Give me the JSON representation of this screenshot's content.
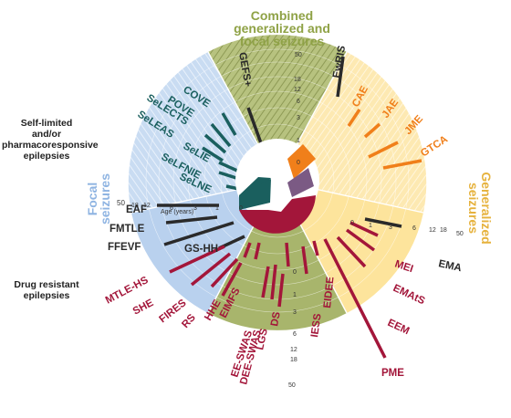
{
  "titles": {
    "combined": [
      "Combined",
      "generalized and",
      "focal seizures"
    ],
    "generalized": [
      "Generalized",
      "seizures"
    ],
    "focal": [
      "Focal",
      "seizures"
    ]
  },
  "side_labels": {
    "self_limited": [
      "Self-limited",
      "and/or",
      "pharmacoresponsive",
      "epilepsies"
    ],
    "drug_resistant": [
      "Drug resistant",
      "epilepsies"
    ]
  },
  "scale": {
    "axis_title": "Age (years)",
    "ticks": [
      "0",
      "1",
      "3",
      "6",
      "12",
      "18",
      "50"
    ]
  },
  "colors": {
    "focal_bg": "#b9d1ee",
    "generalized_bg": "#fde49c",
    "combined_bg": "#a8b56c",
    "focal_dark": "#1a5f5e",
    "generalized_orange": "#f07f1a",
    "drug_resistant_red": "#a3163a",
    "neutral_black": "#2a2a2a",
    "purple": "#7b5a84",
    "combined_title": "#8fa246",
    "generalized_title": "#e6b23d",
    "focal_title": "#8fb4e2"
  },
  "syndromes": [
    {
      "label": "COVE",
      "group": "focal_dark"
    },
    {
      "label": "POVE",
      "group": "focal_dark"
    },
    {
      "label": "SeLECTS",
      "group": "focal_dark"
    },
    {
      "label": "SeLEAS",
      "group": "focal_dark"
    },
    {
      "label": "SeLIE",
      "group": "focal_dark"
    },
    {
      "label": "SeLFNIE",
      "group": "focal_dark"
    },
    {
      "label": "SeLNE",
      "group": "focal_dark"
    },
    {
      "label": "EAF",
      "group": "neutral_black"
    },
    {
      "label": "FMTLE",
      "group": "neutral_black"
    },
    {
      "label": "FFEVF",
      "group": "neutral_black"
    },
    {
      "label": "GS-HH",
      "group": "neutral_black"
    },
    {
      "label": "MTLE-HS",
      "group": "drug_resistant_red"
    },
    {
      "label": "SHE",
      "group": "drug_resistant_red"
    },
    {
      "label": "FIRES",
      "group": "drug_resistant_red"
    },
    {
      "label": "RS",
      "group": "drug_resistant_red"
    },
    {
      "label": "HHE",
      "group": "drug_resistant_red"
    },
    {
      "label": "EIMFS",
      "group": "drug_resistant_red"
    },
    {
      "label": "EE-SWAS",
      "group": "drug_resistant_red"
    },
    {
      "label": "DEE-SWAS",
      "group": "drug_resistant_red"
    },
    {
      "label": "LGS",
      "group": "drug_resistant_red"
    },
    {
      "label": "DS",
      "group": "drug_resistant_red"
    },
    {
      "label": "IESS",
      "group": "drug_resistant_red"
    },
    {
      "label": "EIDEE",
      "group": "drug_resistant_red"
    },
    {
      "label": "PME",
      "group": "drug_resistant_red"
    },
    {
      "label": "EEM",
      "group": "drug_resistant_red"
    },
    {
      "label": "EMAtS",
      "group": "drug_resistant_red"
    },
    {
      "label": "MEI",
      "group": "drug_resistant_red"
    },
    {
      "label": "EMA",
      "group": "neutral_black"
    },
    {
      "label": "GTCA",
      "group": "generalized_orange"
    },
    {
      "label": "JME",
      "group": "generalized_orange"
    },
    {
      "label": "JAE",
      "group": "generalized_orange"
    },
    {
      "label": "CAE",
      "group": "generalized_orange"
    },
    {
      "label": "EwRIS",
      "group": "neutral_black"
    },
    {
      "label": "GEFS+",
      "group": "neutral_black"
    }
  ]
}
